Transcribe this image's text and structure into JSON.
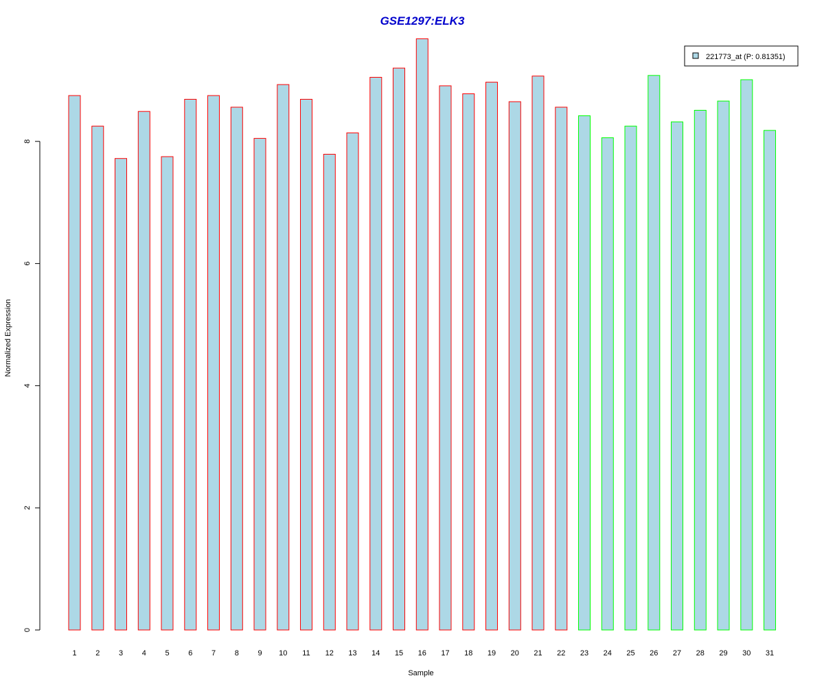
{
  "chart_data": {
    "type": "bar",
    "title": "GSE1297:ELK3",
    "xlabel": "Sample",
    "ylabel": "Normalized Expression",
    "categories": [
      "1",
      "2",
      "3",
      "4",
      "5",
      "6",
      "7",
      "8",
      "9",
      "10",
      "11",
      "12",
      "13",
      "14",
      "15",
      "16",
      "17",
      "18",
      "19",
      "20",
      "21",
      "22",
      "23",
      "24",
      "25",
      "26",
      "27",
      "28",
      "29",
      "30",
      "31"
    ],
    "series": [
      {
        "name": "221773_at (P: 0.81351)",
        "values": [
          8.75,
          8.25,
          7.72,
          8.49,
          7.75,
          8.69,
          8.75,
          8.56,
          8.05,
          8.93,
          8.69,
          7.79,
          8.14,
          9.05,
          9.2,
          9.68,
          8.91,
          8.78,
          8.97,
          8.65,
          9.07,
          8.56,
          8.42,
          8.06,
          8.25,
          9.08,
          8.32,
          8.51,
          8.66,
          9.01,
          8.18
        ],
        "fill": "#ADD8E6"
      }
    ],
    "group_colors": [
      "#FF0000",
      "#FF0000",
      "#FF0000",
      "#FF0000",
      "#FF0000",
      "#FF0000",
      "#FF0000",
      "#FF0000",
      "#FF0000",
      "#FF0000",
      "#FF0000",
      "#FF0000",
      "#FF0000",
      "#FF0000",
      "#FF0000",
      "#FF0000",
      "#FF0000",
      "#FF0000",
      "#FF0000",
      "#FF0000",
      "#FF0000",
      "#FF0000",
      "#00FF00",
      "#00FF00",
      "#00FF00",
      "#00FF00",
      "#00FF00",
      "#00FF00",
      "#00FF00",
      "#00FF00",
      "#00FF00"
    ],
    "ylim": [
      0,
      9.9
    ],
    "y_ticks": [
      "0",
      "2",
      "4",
      "6",
      "8"
    ],
    "grid": false,
    "legend_position": "top-right",
    "title_color": "#0000CC"
  }
}
